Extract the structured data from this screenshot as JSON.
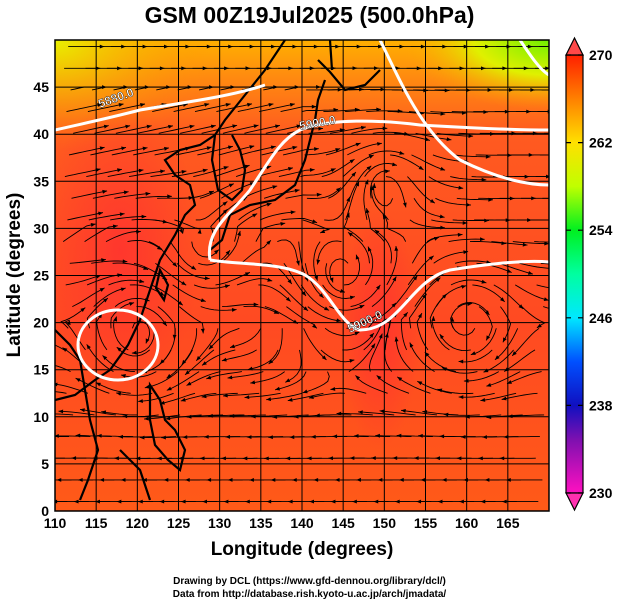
{
  "title": "GSM 00Z19Jul2025 (500.0hPa)",
  "chart_data": {
    "type": "map",
    "title": "GSM 00Z19Jul2025 (500.0hPa)",
    "xlabel": "Longitude (degrees)",
    "ylabel": "Latitude  (degrees)",
    "xlim": [
      110,
      170
    ],
    "ylim": [
      0,
      50
    ],
    "x_ticks": [
      "110",
      "115",
      "120",
      "125",
      "130",
      "135",
      "140",
      "145",
      "150",
      "155",
      "160",
      "165"
    ],
    "y_ticks": [
      "0",
      "5",
      "10",
      "15",
      "20",
      "25",
      "30",
      "35",
      "40",
      "45"
    ],
    "grid": true,
    "fields": {
      "shading": "temperature (K)",
      "contours": "geopotential height (m)",
      "streamlines": "wind"
    },
    "contour_labels": [
      "5880.0",
      "5900.0",
      "5900.0"
    ],
    "colorbar": {
      "range": [
        230,
        270
      ],
      "tick_labels": [
        "270",
        "262",
        "254",
        "246",
        "238",
        "230"
      ],
      "colors": [
        "#ff00c0",
        "#7a10b0",
        "#1010c0",
        "#0060ff",
        "#00e8ff",
        "#00ffa0",
        "#00f020",
        "#80f000",
        "#f0ff00",
        "#ffc000",
        "#ff7000",
        "#ff2000"
      ],
      "extend": "both"
    }
  },
  "credits": {
    "line1": "Drawing by DCL (https://www.gfd-dennou.org/library/dcl/)",
    "line2": "Data from http://database.rish.kyoto-u.ac.jp/arch/jmadata/"
  }
}
